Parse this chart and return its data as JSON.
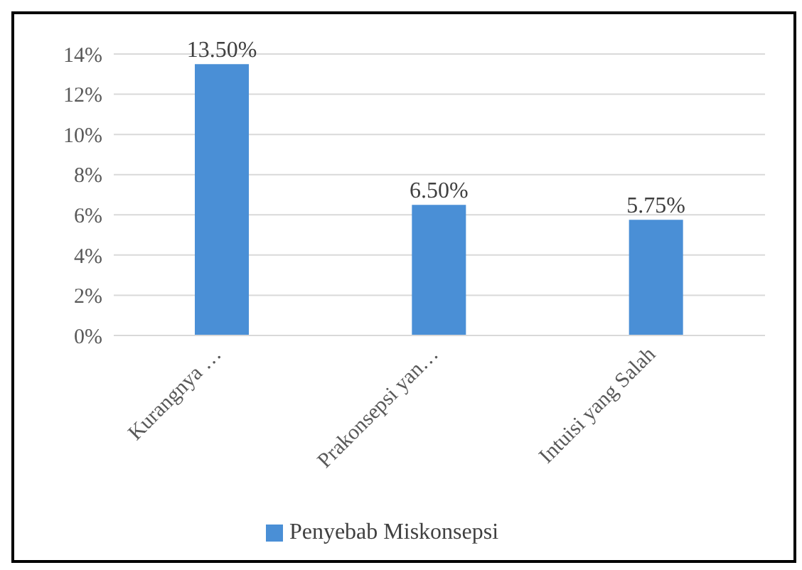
{
  "chart_data": {
    "type": "bar",
    "categories": [
      "Kurangnya …",
      "Prakonsepsi yan…",
      "Intuisi yang Salah"
    ],
    "series": [
      {
        "name": "Penyebab Miskonsepsi",
        "color": "#4a8fd6",
        "values": [
          13.5,
          6.5,
          5.75
        ],
        "value_labels": [
          "13.50%",
          "6.50%",
          "5.75%"
        ]
      }
    ],
    "ylim": [
      0,
      14
    ],
    "yticks": [
      {
        "value": 0,
        "label": "0%"
      },
      {
        "value": 2,
        "label": "2%"
      },
      {
        "value": 4,
        "label": "4%"
      },
      {
        "value": 6,
        "label": "6%"
      },
      {
        "value": 8,
        "label": "8%"
      },
      {
        "value": 10,
        "label": "10%"
      },
      {
        "value": 12,
        "label": "12%"
      },
      {
        "value": 14,
        "label": "14%"
      }
    ],
    "grid": "y",
    "legend": "bottom"
  }
}
